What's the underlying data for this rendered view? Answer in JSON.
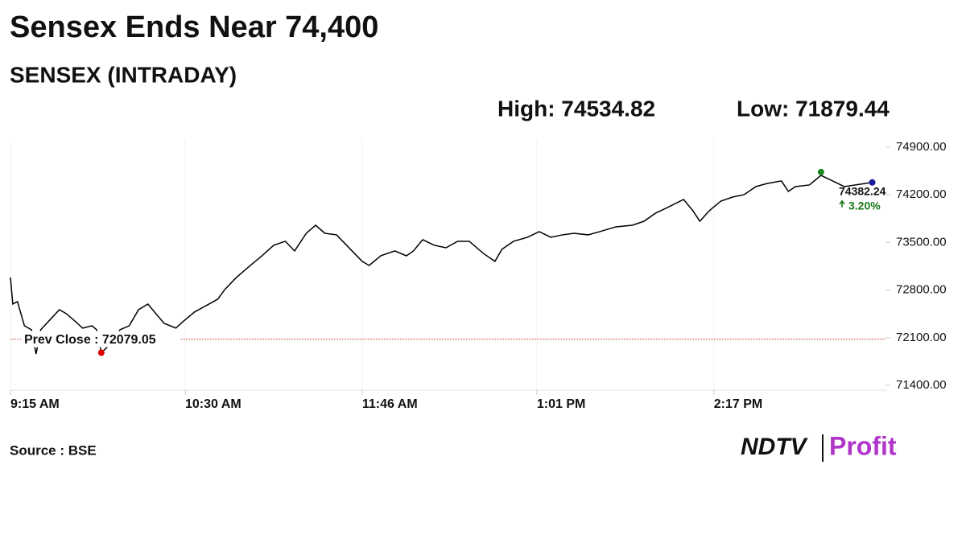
{
  "chart_data": {
    "type": "line",
    "title": "Sensex Ends Near 74,400",
    "subtitle": "SENSEX (INTRADAY)",
    "high_label": "High: 74534.82",
    "low_label": "Low: 71879.44",
    "high": {
      "x": 903,
      "value": 74534.82
    },
    "low": {
      "x": 594,
      "value": 71879.44
    },
    "last": {
      "x": 925,
      "value": 74382.24,
      "label": "74382.24"
    },
    "change_label": "3.20%",
    "prev_close": 72079.05,
    "prev_close_label": "Prev Close : 72079.05",
    "x": [
      555,
      556,
      558,
      561,
      564,
      566,
      568,
      576,
      579,
      583,
      586,
      590,
      592,
      594,
      599,
      602,
      606,
      610,
      614,
      618,
      621,
      626,
      629,
      634,
      639,
      644,
      647,
      652,
      658,
      663,
      668,
      673,
      677,
      682,
      686,
      690,
      695,
      701,
      706,
      709,
      714,
      720,
      725,
      728,
      732,
      737,
      742,
      747,
      752,
      758,
      763,
      766,
      771,
      777,
      782,
      787,
      792,
      797,
      803,
      808,
      815,
      822,
      827,
      832,
      837,
      844,
      848,
      851,
      855,
      860,
      865,
      870,
      875,
      880,
      886,
      889,
      892,
      898,
      903,
      908,
      913,
      925
    ],
    "series": [
      {
        "name": "SENSEX",
        "color": "#000000",
        "values": [
          72985,
          72595,
          72630,
          72275,
          72217,
          71862,
          72217,
          72512,
          72453,
          72335,
          72241,
          72276,
          72217,
          71879,
          72040,
          72217,
          72276,
          72512,
          72595,
          72430,
          72311,
          72241,
          72335,
          72477,
          72571,
          72666,
          72808,
          72985,
          73162,
          73304,
          73458,
          73517,
          73375,
          73635,
          73753,
          73635,
          73612,
          73399,
          73222,
          73162,
          73304,
          73375,
          73304,
          73375,
          73541,
          73458,
          73422,
          73517,
          73517,
          73340,
          73222,
          73399,
          73517,
          73576,
          73659,
          73576,
          73612,
          73635,
          73612,
          73659,
          73730,
          73753,
          73812,
          73931,
          74013,
          74132,
          73966,
          73812,
          73966,
          74108,
          74167,
          74203,
          74321,
          74368,
          74404,
          74250,
          74321,
          74345,
          74486,
          74404,
          74321,
          74382.24
        ]
      }
    ],
    "xlim": [
      555,
      930
    ],
    "xticks": [
      {
        "value": 555,
        "label": "9:15 AM"
      },
      {
        "value": 630,
        "label": "10:30 AM"
      },
      {
        "value": 706,
        "label": "11:46 AM"
      },
      {
        "value": 781,
        "label": "1:01 PM"
      },
      {
        "value": 857,
        "label": "2:17 PM"
      }
    ],
    "ylim": [
      71400,
      74900
    ],
    "yticks": [
      {
        "value": 71400,
        "label": "71400.00"
      },
      {
        "value": 72100,
        "label": "72100.00"
      },
      {
        "value": 72800,
        "label": "72800.00"
      },
      {
        "value": 73500,
        "label": "73500.00"
      },
      {
        "value": 74200,
        "label": "74200.00"
      },
      {
        "value": 74900,
        "label": "74900.00"
      }
    ],
    "source": "Source : BSE",
    "brand": [
      "NDTV",
      "Profit"
    ]
  }
}
